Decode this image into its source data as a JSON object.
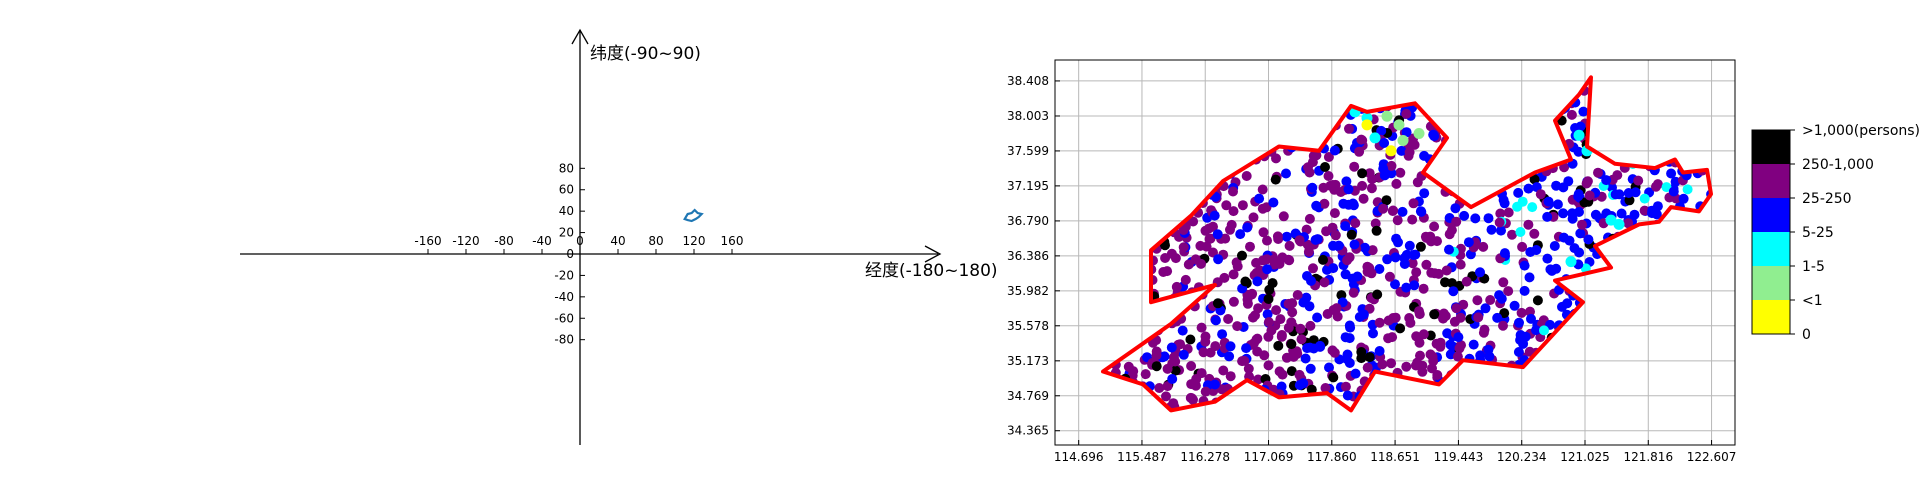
{
  "world_axes": {
    "x_label": "经度(-180~180)",
    "y_label": "纬度(-90~90)",
    "x_ticks": [
      -160,
      -120,
      -80,
      -40,
      0,
      40,
      80,
      120,
      160
    ],
    "y_ticks": [
      80,
      60,
      40,
      20,
      0,
      -20,
      -40,
      -60,
      -80
    ],
    "xlim": [
      -180,
      180
    ],
    "ylim": [
      -90,
      90
    ],
    "region_marker": {
      "lon": 118.6,
      "lat": 36.4,
      "color": "#1f77b4"
    }
  },
  "map": {
    "x_ticks": [
      "114.696",
      "115.487",
      "116.278",
      "117.069",
      "117.860",
      "118.651",
      "119.443",
      "120.234",
      "121.025",
      "121.816",
      "122.607"
    ],
    "y_ticks": [
      "38.408",
      "38.003",
      "37.599",
      "37.195",
      "36.790",
      "36.386",
      "35.982",
      "35.578",
      "35.173",
      "34.769",
      "34.365"
    ],
    "xlim": [
      114.4,
      122.9
    ],
    "ylim": [
      34.2,
      38.65
    ],
    "grid": true,
    "boundary_color": "#ff0000",
    "boundary": [
      [
        115.0,
        35.05
      ],
      [
        115.85,
        35.6
      ],
      [
        116.4,
        36.05
      ],
      [
        115.6,
        35.85
      ],
      [
        115.6,
        36.45
      ],
      [
        116.1,
        36.85
      ],
      [
        116.5,
        37.25
      ],
      [
        117.2,
        37.65
      ],
      [
        117.7,
        37.6
      ],
      [
        118.1,
        38.12
      ],
      [
        118.3,
        38.05
      ],
      [
        118.9,
        38.15
      ],
      [
        119.3,
        37.75
      ],
      [
        119.0,
        37.35
      ],
      [
        119.6,
        36.95
      ],
      [
        120.4,
        37.35
      ],
      [
        120.85,
        37.5
      ],
      [
        120.65,
        37.95
      ],
      [
        120.95,
        38.25
      ],
      [
        121.1,
        38.45
      ],
      [
        121.05,
        37.65
      ],
      [
        121.4,
        37.45
      ],
      [
        121.9,
        37.4
      ],
      [
        122.15,
        37.5
      ],
      [
        122.25,
        37.35
      ],
      [
        122.55,
        37.38
      ],
      [
        122.6,
        37.1
      ],
      [
        122.45,
        36.9
      ],
      [
        122.1,
        36.95
      ],
      [
        121.95,
        36.78
      ],
      [
        121.7,
        36.75
      ],
      [
        121.15,
        36.5
      ],
      [
        121.35,
        36.25
      ],
      [
        120.65,
        36.1
      ],
      [
        121.0,
        35.85
      ],
      [
        120.25,
        35.1
      ],
      [
        119.5,
        35.18
      ],
      [
        119.2,
        34.9
      ],
      [
        118.4,
        35.05
      ],
      [
        118.1,
        34.6
      ],
      [
        117.8,
        34.8
      ],
      [
        117.2,
        34.75
      ],
      [
        116.8,
        34.95
      ],
      [
        116.4,
        34.7
      ],
      [
        115.85,
        34.6
      ],
      [
        115.5,
        34.9
      ],
      [
        115.0,
        35.05
      ]
    ]
  },
  "legend": {
    "entries": [
      {
        "label": ">1,000(persons)",
        "color": "#000000"
      },
      {
        "label": "250-1,000",
        "color": "#800080"
      },
      {
        "label": "25-250",
        "color": "#0000ff"
      },
      {
        "label": "5-25",
        "color": "#00ffff"
      },
      {
        "label": "1-5",
        "color": "#90ee90"
      },
      {
        "label": "<1",
        "color": "#ffff00"
      }
    ],
    "bottom_label": "0"
  }
}
